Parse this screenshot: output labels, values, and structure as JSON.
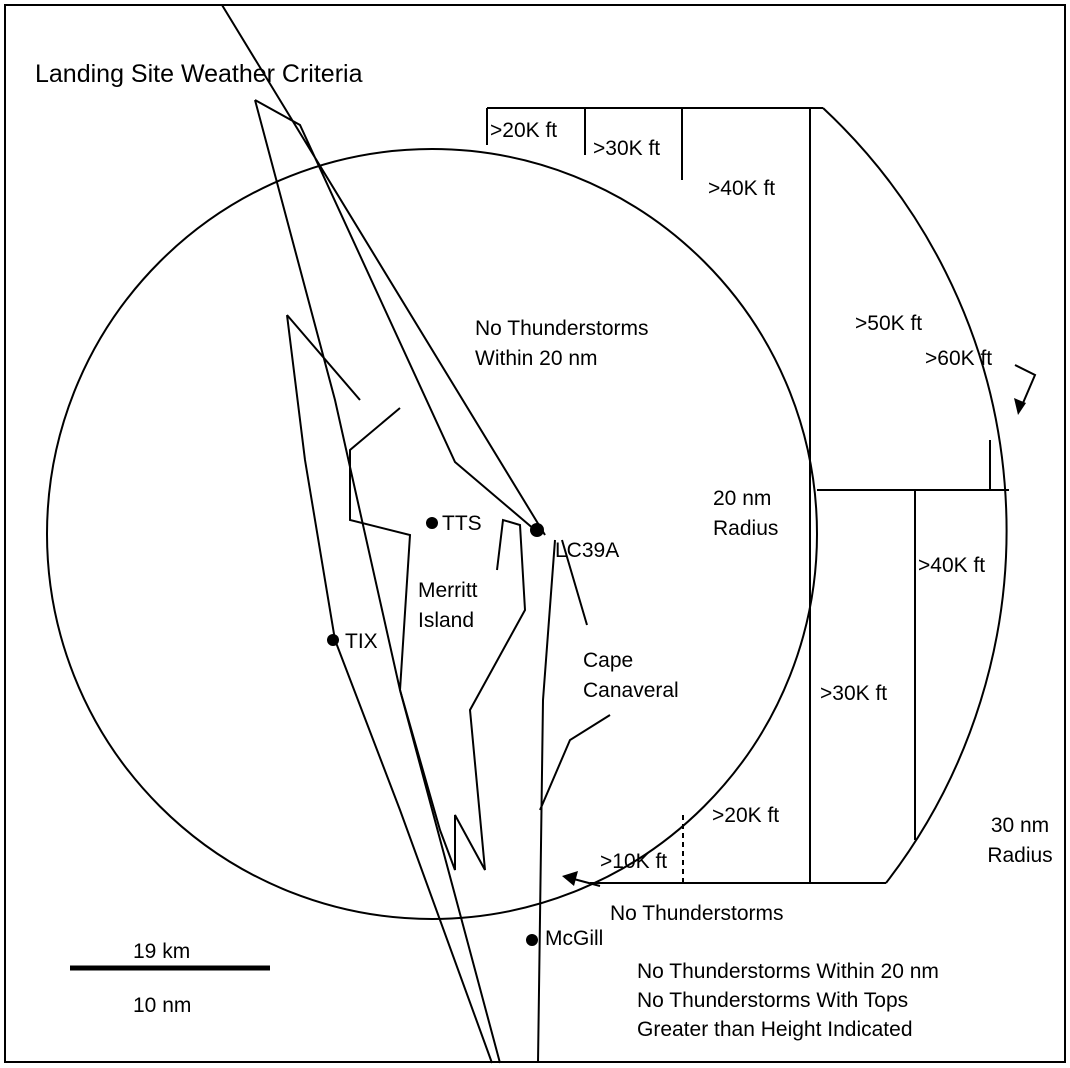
{
  "title": "Landing Site Weather Criteria",
  "labels": [
    {
      "lines": [
        ">20K ft"
      ]
    },
    {
      "lines": [
        ">30K ft"
      ]
    },
    {
      "lines": [
        ">40K ft"
      ]
    },
    {
      "lines": [
        ">50K ft"
      ]
    },
    {
      "lines": [
        ">60K ft"
      ]
    },
    {
      "lines": [
        "No Thunderstorms",
        "Within 20 nm"
      ]
    },
    {
      "lines": [
        "20 nm",
        "Radius"
      ]
    },
    {
      "lines": [
        "TTS"
      ]
    },
    {
      "lines": [
        "LC39A"
      ]
    },
    {
      "lines": [
        "Merritt",
        "Island"
      ]
    },
    {
      "lines": [
        "TIX"
      ]
    },
    {
      "lines": [
        "Cape",
        "Canaveral"
      ]
    },
    {
      "lines": [
        ">40K ft"
      ]
    },
    {
      "lines": [
        ">30K ft"
      ]
    },
    {
      "lines": [
        ">20K ft"
      ]
    },
    {
      "lines": [
        ">10K ft"
      ]
    },
    {
      "lines": [
        "30 nm",
        "Radius"
      ]
    },
    {
      "lines": [
        "No Thunderstorms"
      ]
    },
    {
      "lines": [
        "McGill"
      ]
    },
    {
      "lines": [
        "19 km"
      ]
    },
    {
      "lines": [
        "10 nm"
      ]
    },
    {
      "lines": [
        "No Thunderstorms Within 20 nm",
        "No Thunderstorms With Tops",
        "Greater than Height Indicated"
      ]
    }
  ]
}
